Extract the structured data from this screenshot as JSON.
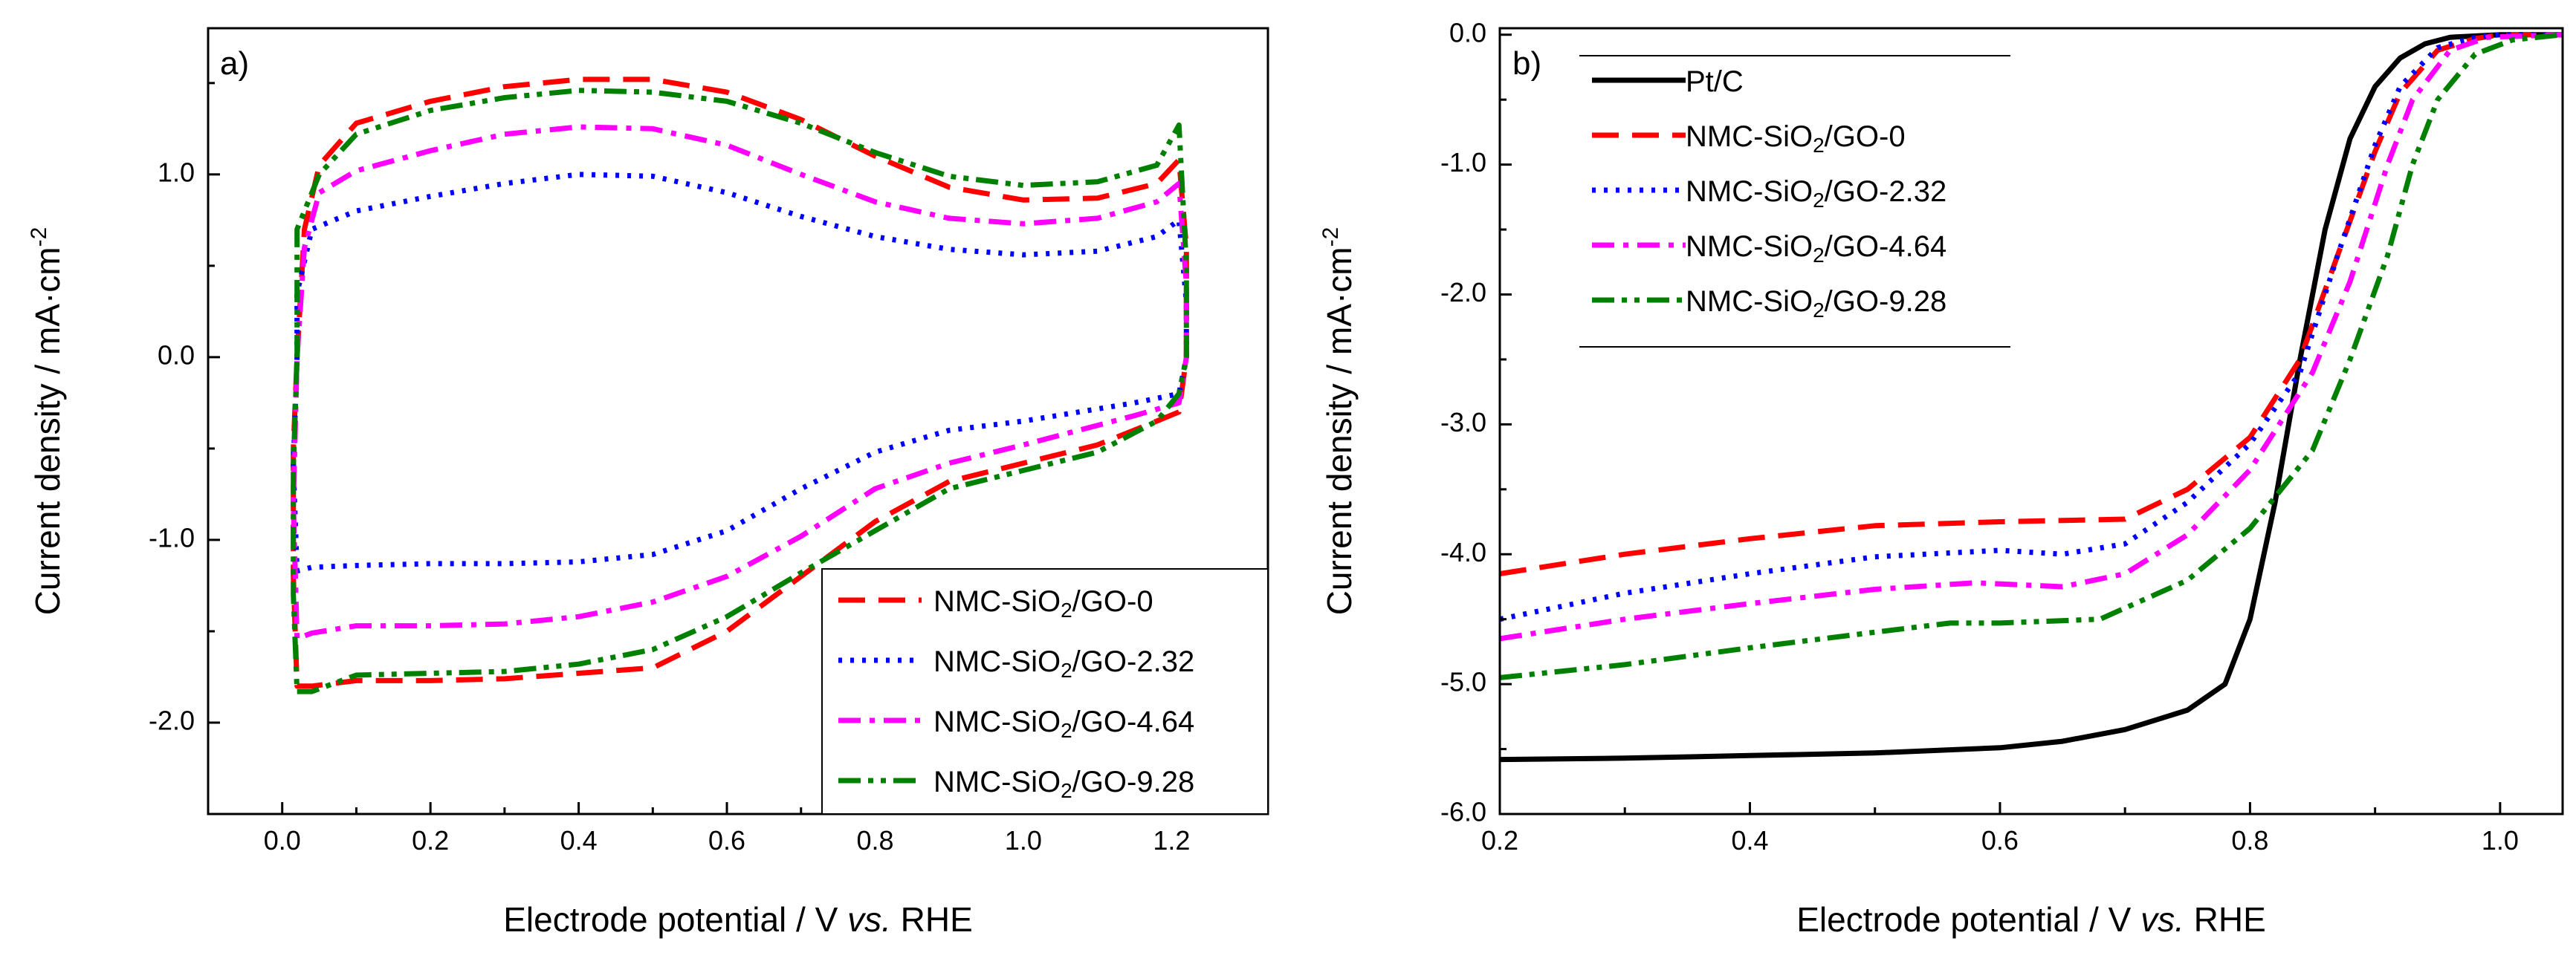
{
  "chart_data": [
    {
      "panel_label": "a)",
      "type": "line",
      "xlabel": {
        "pre": "Electrode potential / V ",
        "italic": "vs.",
        "post": " RHE"
      },
      "ylabel": {
        "pre": "Current density / mA·cm",
        "sup": "-2"
      },
      "xlim": [
        -0.1,
        1.33
      ],
      "ylim": [
        -2.5,
        1.8
      ],
      "xticks": [
        "0.0",
        "0.2",
        "0.4",
        "0.6",
        "0.8",
        "1.0",
        "1.2"
      ],
      "xtick_values": [
        0,
        0.2,
        0.4,
        0.6,
        0.8,
        1.0,
        1.2
      ],
      "yticks": [
        "-2.0",
        "-1.0",
        "0.0",
        "1.0"
      ],
      "ytick_values": [
        -2,
        -1,
        0,
        1
      ],
      "legend_position": "bottom-right",
      "series": [
        {
          "name": "NMC-SiO2/GO-0",
          "label_pre": "NMC-SiO",
          "label_sub": "2",
          "label_post": "/GO-0",
          "color": "#ff0000",
          "dash": "long-dash",
          "points": [
            [
              0.02,
              0.0
            ],
            [
              0.03,
              0.7
            ],
            [
              0.05,
              1.05
            ],
            [
              0.1,
              1.28
            ],
            [
              0.2,
              1.4
            ],
            [
              0.3,
              1.48
            ],
            [
              0.4,
              1.52
            ],
            [
              0.5,
              1.52
            ],
            [
              0.6,
              1.45
            ],
            [
              0.7,
              1.3
            ],
            [
              0.8,
              1.1
            ],
            [
              0.9,
              0.93
            ],
            [
              1.0,
              0.86
            ],
            [
              1.1,
              0.87
            ],
            [
              1.18,
              0.95
            ],
            [
              1.21,
              1.08
            ],
            [
              1.22,
              0.6
            ],
            [
              1.22,
              0.0
            ],
            [
              1.21,
              -0.3
            ],
            [
              1.18,
              -0.35
            ],
            [
              1.1,
              -0.48
            ],
            [
              1.0,
              -0.58
            ],
            [
              0.9,
              -0.68
            ],
            [
              0.8,
              -0.9
            ],
            [
              0.7,
              -1.2
            ],
            [
              0.6,
              -1.5
            ],
            [
              0.5,
              -1.7
            ],
            [
              0.4,
              -1.73
            ],
            [
              0.3,
              -1.76
            ],
            [
              0.2,
              -1.77
            ],
            [
              0.1,
              -1.77
            ],
            [
              0.04,
              -1.8
            ],
            [
              0.02,
              -1.8
            ],
            [
              0.015,
              -1.2
            ],
            [
              0.015,
              -0.5
            ],
            [
              0.02,
              0.0
            ]
          ]
        },
        {
          "name": "NMC-SiO2/GO-2.32",
          "label_pre": "NMC-SiO",
          "label_sub": "2",
          "label_post": "/GO-2.32",
          "color": "#0000ff",
          "dash": "dot",
          "points": [
            [
              0.02,
              0.0
            ],
            [
              0.02,
              0.35
            ],
            [
              0.04,
              0.7
            ],
            [
              0.1,
              0.8
            ],
            [
              0.2,
              0.88
            ],
            [
              0.3,
              0.95
            ],
            [
              0.4,
              1.0
            ],
            [
              0.5,
              0.99
            ],
            [
              0.6,
              0.9
            ],
            [
              0.7,
              0.77
            ],
            [
              0.8,
              0.66
            ],
            [
              0.9,
              0.59
            ],
            [
              1.0,
              0.56
            ],
            [
              1.1,
              0.58
            ],
            [
              1.18,
              0.66
            ],
            [
              1.21,
              0.75
            ],
            [
              1.22,
              0.3
            ],
            [
              1.22,
              0.0
            ],
            [
              1.21,
              -0.2
            ],
            [
              1.15,
              -0.25
            ],
            [
              1.0,
              -0.35
            ],
            [
              0.9,
              -0.4
            ],
            [
              0.8,
              -0.52
            ],
            [
              0.7,
              -0.72
            ],
            [
              0.6,
              -0.95
            ],
            [
              0.5,
              -1.08
            ],
            [
              0.4,
              -1.12
            ],
            [
              0.3,
              -1.13
            ],
            [
              0.2,
              -1.13
            ],
            [
              0.1,
              -1.14
            ],
            [
              0.04,
              -1.15
            ],
            [
              0.02,
              -1.17
            ],
            [
              0.015,
              -0.6
            ],
            [
              0.02,
              0.0
            ]
          ]
        },
        {
          "name": "NMC-SiO2/GO-4.64",
          "label_pre": "NMC-SiO",
          "label_sub": "2",
          "label_post": "/GO-4.64",
          "color": "#ff00ff",
          "dash": "dash-dot",
          "points": [
            [
              0.02,
              0.0
            ],
            [
              0.03,
              0.6
            ],
            [
              0.05,
              0.9
            ],
            [
              0.1,
              1.02
            ],
            [
              0.2,
              1.13
            ],
            [
              0.3,
              1.22
            ],
            [
              0.4,
              1.26
            ],
            [
              0.5,
              1.25
            ],
            [
              0.6,
              1.16
            ],
            [
              0.7,
              1.0
            ],
            [
              0.8,
              0.85
            ],
            [
              0.9,
              0.76
            ],
            [
              1.0,
              0.73
            ],
            [
              1.1,
              0.76
            ],
            [
              1.18,
              0.85
            ],
            [
              1.21,
              0.95
            ],
            [
              1.22,
              0.4
            ],
            [
              1.22,
              0.0
            ],
            [
              1.21,
              -0.25
            ],
            [
              1.15,
              -0.32
            ],
            [
              1.0,
              -0.48
            ],
            [
              0.9,
              -0.58
            ],
            [
              0.8,
              -0.72
            ],
            [
              0.7,
              -0.98
            ],
            [
              0.6,
              -1.2
            ],
            [
              0.5,
              -1.34
            ],
            [
              0.4,
              -1.42
            ],
            [
              0.3,
              -1.46
            ],
            [
              0.2,
              -1.47
            ],
            [
              0.1,
              -1.47
            ],
            [
              0.04,
              -1.51
            ],
            [
              0.02,
              -1.54
            ],
            [
              0.015,
              -0.8
            ],
            [
              0.02,
              0.0
            ]
          ]
        },
        {
          "name": "NMC-SiO2/GO-9.28",
          "label_pre": "NMC-SiO",
          "label_sub": "2",
          "label_post": "/GO-9.28",
          "color": "#008000",
          "dash": "dash-dot-dot",
          "points": [
            [
              0.02,
              0.0
            ],
            [
              0.02,
              0.7
            ],
            [
              0.05,
              1.0
            ],
            [
              0.1,
              1.22
            ],
            [
              0.2,
              1.35
            ],
            [
              0.3,
              1.42
            ],
            [
              0.4,
              1.46
            ],
            [
              0.5,
              1.45
            ],
            [
              0.6,
              1.4
            ],
            [
              0.7,
              1.28
            ],
            [
              0.8,
              1.12
            ],
            [
              0.9,
              0.99
            ],
            [
              1.0,
              0.94
            ],
            [
              1.1,
              0.96
            ],
            [
              1.18,
              1.05
            ],
            [
              1.21,
              1.27
            ],
            [
              1.22,
              0.5
            ],
            [
              1.22,
              0.0
            ],
            [
              1.21,
              -0.2
            ],
            [
              1.18,
              -0.35
            ],
            [
              1.1,
              -0.52
            ],
            [
              1.0,
              -0.62
            ],
            [
              0.9,
              -0.72
            ],
            [
              0.8,
              -0.95
            ],
            [
              0.7,
              -1.18
            ],
            [
              0.6,
              -1.42
            ],
            [
              0.5,
              -1.6
            ],
            [
              0.4,
              -1.68
            ],
            [
              0.3,
              -1.72
            ],
            [
              0.2,
              -1.73
            ],
            [
              0.1,
              -1.74
            ],
            [
              0.04,
              -1.83
            ],
            [
              0.02,
              -1.83
            ],
            [
              0.015,
              -1.3
            ],
            [
              0.015,
              -0.6
            ],
            [
              0.02,
              0.0
            ]
          ]
        }
      ]
    },
    {
      "panel_label": "b)",
      "type": "line",
      "xlabel": {
        "pre": "Electrode potential / V ",
        "italic": "vs.",
        "post": " RHE"
      },
      "ylabel": {
        "pre": "Current density / mA·cm",
        "sup": "-2"
      },
      "xlim": [
        0.2,
        1.05
      ],
      "ylim": [
        -6.0,
        0.05
      ],
      "xticks": [
        "0.2",
        "0.4",
        "0.6",
        "0.8",
        "1.0"
      ],
      "xtick_values": [
        0.2,
        0.4,
        0.6,
        0.8,
        1.0
      ],
      "yticks": [
        "-6.0",
        "-5.0",
        "-4.0",
        "-3.0",
        "-2.0",
        "-1.0",
        "0.0"
      ],
      "ytick_values": [
        -6,
        -5,
        -4,
        -3,
        -2,
        -1,
        0
      ],
      "legend_position": "top-left",
      "series": [
        {
          "name": "Pt/C",
          "label_pre": "Pt/C",
          "label_sub": "",
          "label_post": "",
          "color": "#000000",
          "dash": "solid",
          "points": [
            [
              0.2,
              -5.58
            ],
            [
              0.3,
              -5.57
            ],
            [
              0.4,
              -5.55
            ],
            [
              0.5,
              -5.53
            ],
            [
              0.6,
              -5.49
            ],
            [
              0.65,
              -5.44
            ],
            [
              0.7,
              -5.35
            ],
            [
              0.75,
              -5.2
            ],
            [
              0.78,
              -5.0
            ],
            [
              0.8,
              -4.5
            ],
            [
              0.82,
              -3.6
            ],
            [
              0.84,
              -2.5
            ],
            [
              0.86,
              -1.5
            ],
            [
              0.88,
              -0.8
            ],
            [
              0.9,
              -0.4
            ],
            [
              0.92,
              -0.18
            ],
            [
              0.94,
              -0.07
            ],
            [
              0.96,
              -0.02
            ],
            [
              1.0,
              0.0
            ],
            [
              1.05,
              0.0
            ]
          ]
        },
        {
          "name": "NMC-SiO2/GO-0",
          "label_pre": "NMC-SiO",
          "label_sub": "2",
          "label_post": "/GO-0",
          "color": "#ff0000",
          "dash": "long-dash",
          "points": [
            [
              0.2,
              -4.15
            ],
            [
              0.3,
              -4.0
            ],
            [
              0.4,
              -3.88
            ],
            [
              0.5,
              -3.78
            ],
            [
              0.6,
              -3.75
            ],
            [
              0.7,
              -3.73
            ],
            [
              0.75,
              -3.5
            ],
            [
              0.8,
              -3.1
            ],
            [
              0.84,
              -2.5
            ],
            [
              0.87,
              -1.7
            ],
            [
              0.9,
              -0.9
            ],
            [
              0.92,
              -0.45
            ],
            [
              0.95,
              -0.12
            ],
            [
              0.98,
              -0.03
            ],
            [
              1.0,
              0.0
            ],
            [
              1.05,
              0.0
            ]
          ]
        },
        {
          "name": "NMC-SiO2/GO-2.32",
          "label_pre": "NMC-SiO",
          "label_sub": "2",
          "label_post": "/GO-2.32",
          "color": "#0000ff",
          "dash": "dot",
          "points": [
            [
              0.2,
              -4.5
            ],
            [
              0.3,
              -4.3
            ],
            [
              0.4,
              -4.15
            ],
            [
              0.5,
              -4.02
            ],
            [
              0.6,
              -3.97
            ],
            [
              0.65,
              -4.0
            ],
            [
              0.7,
              -3.92
            ],
            [
              0.75,
              -3.6
            ],
            [
              0.8,
              -3.15
            ],
            [
              0.84,
              -2.6
            ],
            [
              0.87,
              -1.7
            ],
            [
              0.9,
              -0.85
            ],
            [
              0.92,
              -0.4
            ],
            [
              0.95,
              -0.1
            ],
            [
              0.98,
              -0.02
            ],
            [
              1.0,
              0.0
            ],
            [
              1.05,
              0.0
            ]
          ]
        },
        {
          "name": "NMC-SiO2/GO-4.64",
          "label_pre": "NMC-SiO",
          "label_sub": "2",
          "label_post": "/GO-4.64",
          "color": "#ff00ff",
          "dash": "dash-dot",
          "points": [
            [
              0.2,
              -4.65
            ],
            [
              0.3,
              -4.5
            ],
            [
              0.4,
              -4.38
            ],
            [
              0.5,
              -4.27
            ],
            [
              0.58,
              -4.22
            ],
            [
              0.65,
              -4.25
            ],
            [
              0.7,
              -4.15
            ],
            [
              0.75,
              -3.85
            ],
            [
              0.8,
              -3.35
            ],
            [
              0.85,
              -2.6
            ],
            [
              0.88,
              -1.9
            ],
            [
              0.91,
              -1.0
            ],
            [
              0.93,
              -0.5
            ],
            [
              0.96,
              -0.12
            ],
            [
              0.99,
              -0.02
            ],
            [
              1.05,
              0.0
            ]
          ]
        },
        {
          "name": "NMC-SiO2/GO-9.28",
          "label_pre": "NMC-SiO",
          "label_sub": "2",
          "label_post": "/GO-9.28",
          "color": "#008000",
          "dash": "dash-dot-dot",
          "points": [
            [
              0.2,
              -4.95
            ],
            [
              0.3,
              -4.85
            ],
            [
              0.4,
              -4.72
            ],
            [
              0.5,
              -4.6
            ],
            [
              0.56,
              -4.53
            ],
            [
              0.6,
              -4.53
            ],
            [
              0.68,
              -4.5
            ],
            [
              0.75,
              -4.2
            ],
            [
              0.8,
              -3.8
            ],
            [
              0.85,
              -3.2
            ],
            [
              0.88,
              -2.5
            ],
            [
              0.91,
              -1.7
            ],
            [
              0.93,
              -1.0
            ],
            [
              0.95,
              -0.5
            ],
            [
              0.98,
              -0.15
            ],
            [
              1.01,
              -0.04
            ],
            [
              1.05,
              0.0
            ]
          ]
        }
      ]
    }
  ]
}
